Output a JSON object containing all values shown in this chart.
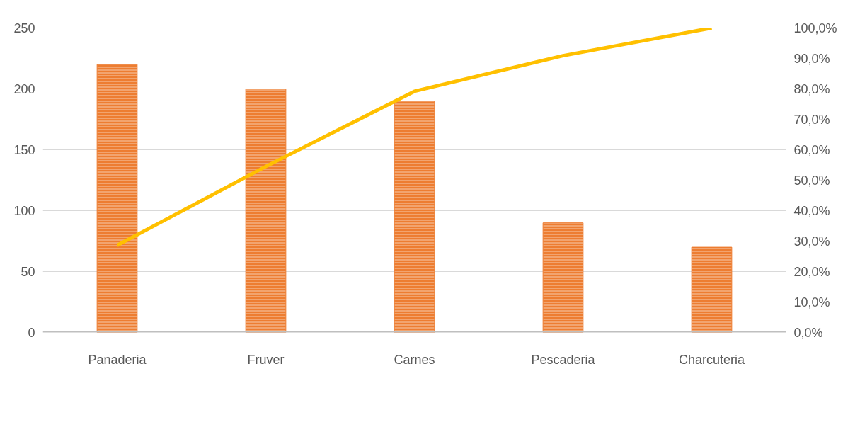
{
  "chart_data": {
    "type": "bar",
    "categories": [
      "Panaderia",
      "Fruver",
      "Carnes",
      "Pescaderia",
      "Charcuteria"
    ],
    "series": [
      {
        "color": "#ed7d31",
        "values": [
          220,
          200,
          190,
          90,
          70
        ]
      },
      {
        "type": "line",
        "axis": "y2",
        "color": "#ffc000",
        "values": [
          28.6,
          54.5,
          79.2,
          90.9,
          100
        ]
      }
    ],
    "ylim": [
      0,
      250
    ],
    "yticks": [
      0,
      50,
      100,
      150,
      200,
      250
    ],
    "y2lim": [
      0,
      100
    ],
    "y2ticks": [
      {
        "value": 0,
        "label": "0,0%"
      },
      {
        "value": 10,
        "label": "10,0%"
      },
      {
        "value": 20,
        "label": "20,0%"
      },
      {
        "value": 30,
        "label": "30,0%"
      },
      {
        "value": 40,
        "label": "40,0%"
      },
      {
        "value": 50,
        "label": "50,0%"
      },
      {
        "value": 60,
        "label": "60,0%"
      },
      {
        "value": 70,
        "label": "70,0%"
      },
      {
        "value": 80,
        "label": "80,0%"
      },
      {
        "value": 90,
        "label": "90,0%"
      },
      {
        "value": 100,
        "label": "100,0%"
      }
    ],
    "grid": "y",
    "line_style": "solid",
    "marker": "none"
  }
}
